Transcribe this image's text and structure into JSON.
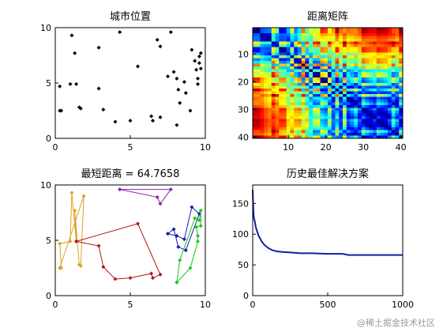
{
  "watermark": "@稀土掘金技术社区",
  "chart_data": [
    {
      "type": "scatter",
      "title": "城市位置",
      "xlim": [
        0,
        10
      ],
      "ylim": [
        0,
        10
      ],
      "xticks": [
        0,
        5,
        10
      ],
      "yticks": [
        0,
        5,
        10
      ],
      "marker_color": "#000000",
      "points": [
        [
          0.3,
          2.5
        ],
        [
          0.4,
          2.5
        ],
        [
          0.3,
          4.7
        ],
        [
          1.0,
          4.9
        ],
        [
          1.4,
          4.9
        ],
        [
          1.1,
          9.3
        ],
        [
          1.3,
          7.7
        ],
        [
          1.6,
          2.8
        ],
        [
          1.7,
          2.7
        ],
        [
          2.9,
          4.5
        ],
        [
          2.9,
          8.2
        ],
        [
          3.2,
          2.6
        ],
        [
          4.0,
          1.5
        ],
        [
          4.3,
          9.6
        ],
        [
          5.0,
          1.6
        ],
        [
          5.5,
          6.5
        ],
        [
          6.4,
          2.0
        ],
        [
          6.5,
          1.6
        ],
        [
          6.8,
          8.9
        ],
        [
          7.0,
          8.3
        ],
        [
          7.0,
          1.9
        ],
        [
          7.5,
          5.6
        ],
        [
          7.7,
          9.6
        ],
        [
          7.9,
          6.0
        ],
        [
          8.1,
          1.2
        ],
        [
          8.1,
          5.4
        ],
        [
          8.2,
          4.4
        ],
        [
          8.3,
          3.2
        ],
        [
          8.6,
          5.1
        ],
        [
          9.1,
          8.0
        ],
        [
          9.3,
          7.0
        ],
        [
          9.4,
          6.2
        ],
        [
          9.5,
          5.4
        ],
        [
          9.6,
          7.4
        ],
        [
          9.6,
          6.8
        ],
        [
          9.7,
          6.3
        ],
        [
          9.5,
          4.9
        ],
        [
          9.0,
          2.5
        ],
        [
          8.7,
          4.1
        ],
        [
          9.7,
          7.7
        ]
      ]
    },
    {
      "type": "heatmap",
      "title": "距离矩阵",
      "xlim": [
        0.5,
        40.5
      ],
      "ylim": [
        0.5,
        40.5
      ],
      "xticks": [
        10,
        20,
        30,
        40
      ],
      "yticks": [
        10,
        20,
        30,
        40
      ],
      "size": 40,
      "colormap": "jet"
    },
    {
      "type": "line",
      "title": "最短距离 = 64.7658",
      "xlim": [
        0,
        10
      ],
      "ylim": [
        0,
        10
      ],
      "xticks": [
        0,
        5,
        10
      ],
      "yticks": [
        0,
        5,
        10
      ],
      "series": [
        {
          "color": "#e0a020",
          "points": [
            [
              0.3,
              2.5
            ],
            [
              0.4,
              2.5
            ],
            [
              0.3,
              4.7
            ],
            [
              1.0,
              4.9
            ],
            [
              1.1,
              9.3
            ],
            [
              1.4,
              4.9
            ],
            [
              1.3,
              7.7
            ],
            [
              1.6,
              2.8
            ],
            [
              1.7,
              2.7
            ],
            [
              1.9,
              9.0
            ],
            [
              0.3,
              2.5
            ]
          ]
        },
        {
          "color": "#b01818",
          "points": [
            [
              1.4,
              4.9
            ],
            [
              2.9,
              4.5
            ],
            [
              3.2,
              2.6
            ],
            [
              4.0,
              1.5
            ],
            [
              5.0,
              1.6
            ],
            [
              6.4,
              2.0
            ],
            [
              6.5,
              1.6
            ],
            [
              7.0,
              1.9
            ],
            [
              5.5,
              6.5
            ],
            [
              1.4,
              4.9
            ]
          ]
        },
        {
          "color": "#9020b0",
          "points": [
            [
              4.3,
              9.6
            ],
            [
              7.7,
              9.6
            ],
            [
              7.0,
              8.3
            ],
            [
              6.8,
              8.9
            ],
            [
              4.3,
              9.6
            ]
          ]
        },
        {
          "color": "#1818b8",
          "points": [
            [
              7.5,
              5.6
            ],
            [
              8.1,
              5.4
            ],
            [
              8.6,
              5.1
            ],
            [
              9.1,
              8.0
            ],
            [
              9.6,
              7.4
            ],
            [
              8.7,
              4.1
            ],
            [
              8.2,
              4.4
            ],
            [
              7.9,
              6.0
            ],
            [
              7.5,
              5.6
            ]
          ]
        },
        {
          "color": "#18c818",
          "points": [
            [
              8.1,
              1.2
            ],
            [
              8.3,
              3.2
            ],
            [
              9.3,
              7.0
            ],
            [
              9.6,
              6.8
            ],
            [
              9.7,
              7.7
            ],
            [
              9.7,
              6.3
            ],
            [
              9.4,
              6.2
            ],
            [
              9.5,
              5.4
            ],
            [
              9.5,
              4.9
            ],
            [
              9.0,
              2.5
            ],
            [
              8.1,
              1.2
            ]
          ]
        }
      ]
    },
    {
      "type": "line",
      "title": "历史最佳解决方案",
      "xlim": [
        0,
        1000
      ],
      "ylim": [
        0,
        180
      ],
      "xticks": [
        0,
        500,
        1000
      ],
      "yticks": [
        0,
        50,
        100,
        150
      ],
      "series": [
        {
          "color": "#1020a0",
          "x": [
            0,
            3,
            6,
            10,
            15,
            20,
            30,
            40,
            50,
            60,
            80,
            100,
            130,
            160,
            200,
            260,
            320,
            400,
            500,
            600,
            640,
            700,
            800,
            900,
            1000
          ],
          "y": [
            172,
            150,
            132,
            124,
            120,
            112,
            104,
            97,
            93,
            88,
            82,
            78,
            74,
            72,
            71,
            70,
            69,
            69,
            68,
            68,
            66,
            66,
            66,
            66,
            66
          ]
        }
      ]
    }
  ]
}
